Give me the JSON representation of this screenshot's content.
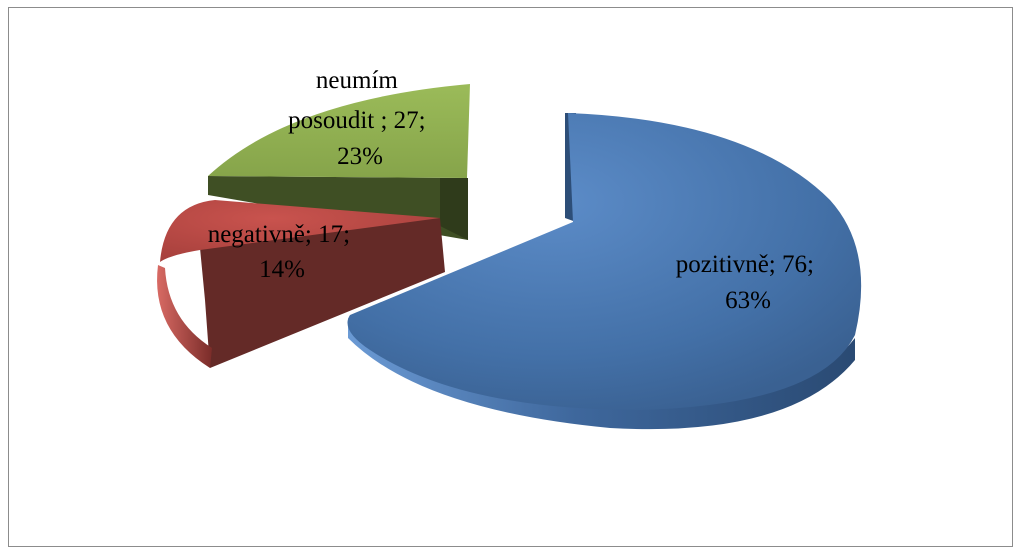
{
  "chart_data": {
    "type": "pie",
    "style": "3d-exploded",
    "title": "",
    "legend": "none",
    "slices": [
      {
        "category": "pozitivně",
        "value": 76,
        "percent": "63%",
        "label_line1": "pozitivně; 76;",
        "label_line2": "63%",
        "color": "#4370a7"
      },
      {
        "category": "negativně",
        "value": 17,
        "percent": "14%",
        "label_line1": "negativně; 17;",
        "label_line2": "14%",
        "color": "#b04541"
      },
      {
        "category": "neumím posoudit ",
        "value": 27,
        "percent": "23%",
        "label_line1": "neumím",
        "label_line2": "posoudit ; 27;",
        "label_line3": "23%",
        "color": "#8eac4c"
      }
    ]
  }
}
